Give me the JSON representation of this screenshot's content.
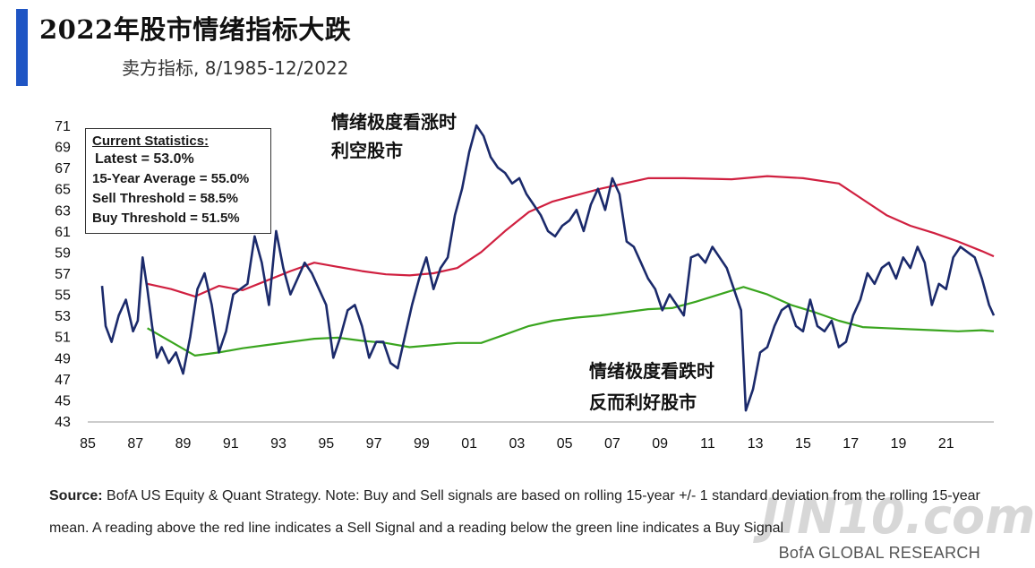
{
  "header": {
    "title": "2022年股市情绪指标大跌",
    "subtitle": "卖方指标, 8/1985-12/2022",
    "accent_color": "#1f55c4"
  },
  "stats": {
    "heading": "Current Statistics:",
    "latest": "Latest = 53.0%",
    "avg": "15-Year Average = 55.0%",
    "sell": "Sell Threshold = 58.5%",
    "buy": "Buy Threshold = 51.5%"
  },
  "annotations": {
    "top_line1": "情绪极度看涨时",
    "top_line2": "利空股市",
    "bottom_line1": "情绪极度看跌时",
    "bottom_line2": "反而利好股市"
  },
  "footnote": {
    "source_label": "Source:",
    "text": " BofA US Equity & Quant Strategy. Note: Buy and Sell signals are based on rolling 15-year +/- 1 standard deviation from the rolling 15-year mean. A reading above the red line indicates a Sell Signal and a reading below the green line indicates a Buy Signal"
  },
  "credit": "BofA GLOBAL RESEARCH",
  "watermark": "JIN10.com",
  "chart_data": {
    "type": "line",
    "title": "",
    "xlabel": "",
    "ylabel": "",
    "xlim": [
      1985,
      2023
    ],
    "ylim": [
      43,
      71
    ],
    "x_ticks": [
      "85",
      "87",
      "89",
      "91",
      "93",
      "95",
      "97",
      "99",
      "01",
      "03",
      "05",
      "07",
      "09",
      "11",
      "13",
      "15",
      "17",
      "19",
      "21"
    ],
    "y_ticks": [
      "43",
      "45",
      "47",
      "49",
      "51",
      "53",
      "55",
      "57",
      "59",
      "61",
      "63",
      "65",
      "67",
      "69",
      "71"
    ],
    "colors": {
      "indicator": "#1b2a6b",
      "sell": "#d02040",
      "buy": "#3aa51f"
    },
    "series": [
      {
        "key": "indicator",
        "x": [
          1985.6,
          1985.75,
          1986.0,
          1986.3,
          1986.6,
          1986.9,
          1987.1,
          1987.3,
          1987.5,
          1987.7,
          1987.9,
          1988.1,
          1988.4,
          1988.7,
          1989.0,
          1989.3,
          1989.6,
          1989.9,
          1990.2,
          1990.5,
          1990.8,
          1991.1,
          1991.4,
          1991.7,
          1992.0,
          1992.3,
          1992.6,
          1992.9,
          1993.2,
          1993.5,
          1993.8,
          1994.1,
          1994.4,
          1994.7,
          1995.0,
          1995.3,
          1995.6,
          1995.9,
          1996.2,
          1996.5,
          1996.8,
          1997.1,
          1997.4,
          1997.7,
          1998.0,
          1998.3,
          1998.6,
          1998.9,
          1999.2,
          1999.5,
          1999.8,
          2000.1,
          2000.4,
          2000.7,
          2001.0,
          2001.3,
          2001.6,
          2001.9,
          2002.2,
          2002.5,
          2002.8,
          2003.1,
          2003.4,
          2003.7,
          2004.0,
          2004.3,
          2004.6,
          2004.9,
          2005.2,
          2005.5,
          2005.8,
          2006.1,
          2006.4,
          2006.7,
          2007.0,
          2007.3,
          2007.6,
          2007.9,
          2008.2,
          2008.5,
          2008.8,
          2009.1,
          2009.4,
          2009.7,
          2010.0,
          2010.3,
          2010.6,
          2010.9,
          2011.2,
          2011.5,
          2011.8,
          2012.1,
          2012.4,
          2012.6,
          2012.9,
          2013.2,
          2013.5,
          2013.8,
          2014.1,
          2014.4,
          2014.7,
          2015.0,
          2015.3,
          2015.6,
          2015.9,
          2016.2,
          2016.5,
          2016.8,
          2017.1,
          2017.4,
          2017.7,
          2018.0,
          2018.3,
          2018.6,
          2018.9,
          2019.2,
          2019.5,
          2019.8,
          2020.1,
          2020.4,
          2020.7,
          2021.0,
          2021.3,
          2021.6,
          2021.9,
          2022.2,
          2022.5,
          2022.8,
          2023.0
        ],
        "y": [
          55.8,
          52.0,
          50.5,
          53.0,
          54.5,
          51.5,
          52.5,
          58.5,
          55.5,
          52.0,
          49.0,
          50.0,
          48.5,
          49.5,
          47.5,
          51.0,
          55.5,
          57.0,
          54.0,
          49.5,
          51.5,
          55.0,
          55.5,
          56.0,
          60.5,
          58.0,
          54.0,
          61.0,
          57.5,
          55.0,
          56.5,
          58.0,
          57.0,
          55.5,
          54.0,
          49.0,
          51.0,
          53.5,
          54.0,
          52.0,
          49.0,
          50.5,
          50.5,
          48.5,
          48.0,
          51.0,
          54.0,
          56.5,
          58.5,
          55.5,
          57.5,
          58.5,
          62.5,
          65.0,
          68.5,
          71.0,
          70.0,
          68.0,
          67.0,
          66.5,
          65.5,
          66.0,
          64.5,
          63.5,
          62.5,
          61.0,
          60.5,
          61.5,
          62.0,
          63.0,
          61.0,
          63.5,
          65.0,
          63.0,
          66.0,
          64.5,
          60.0,
          59.5,
          58.0,
          56.5,
          55.5,
          53.5,
          55.0,
          54.0,
          53.0,
          58.5,
          58.8,
          58.0,
          59.5,
          58.5,
          57.5,
          55.5,
          53.5,
          44.0,
          46.0,
          49.5,
          50.0,
          52.0,
          53.5,
          54.0,
          52.0,
          51.5,
          54.5,
          52.0,
          51.5,
          52.5,
          50.0,
          50.5,
          53.0,
          54.5,
          57.0,
          56.0,
          57.5,
          58.0,
          56.5,
          58.5,
          57.5,
          59.5,
          58.0,
          54.0,
          56.0,
          55.5,
          58.5,
          59.5,
          59.0,
          58.5,
          56.5,
          54.0,
          53.0
        ]
      },
      {
        "key": "sell",
        "x": [
          1987.5,
          1988.5,
          1989.5,
          1990.5,
          1991.5,
          1992.5,
          1993.5,
          1994.5,
          1995.5,
          1996.5,
          1997.5,
          1998.5,
          1999.5,
          2000.5,
          2001.5,
          2002.5,
          2003.5,
          2004.5,
          2005.5,
          2006.5,
          2007.5,
          2008.5,
          2010.0,
          2012.0,
          2013.5,
          2015.0,
          2016.5,
          2017.5,
          2018.5,
          2019.5,
          2020.5,
          2021.5,
          2022.5,
          2023.0
        ],
        "y": [
          56.0,
          55.5,
          54.8,
          55.8,
          55.4,
          56.3,
          57.2,
          58.0,
          57.6,
          57.2,
          56.9,
          56.8,
          57.0,
          57.5,
          59.0,
          61.0,
          62.8,
          63.8,
          64.4,
          65.0,
          65.5,
          66.0,
          66.0,
          65.9,
          66.2,
          66.0,
          65.5,
          64.0,
          62.5,
          61.5,
          60.8,
          60.0,
          59.1,
          58.6
        ]
      },
      {
        "key": "buy",
        "x": [
          1987.5,
          1988.5,
          1989.5,
          1990.5,
          1991.5,
          1992.5,
          1993.5,
          1994.5,
          1995.5,
          1996.5,
          1997.5,
          1998.5,
          1999.5,
          2000.5,
          2001.5,
          2002.5,
          2003.5,
          2004.5,
          2005.5,
          2006.5,
          2007.5,
          2008.5,
          2009.5,
          2010.5,
          2011.5,
          2012.5,
          2013.5,
          2014.5,
          2015.5,
          2016.5,
          2017.5,
          2018.5,
          2019.5,
          2020.5,
          2021.5,
          2022.5,
          2023.0
        ],
        "y": [
          51.8,
          50.5,
          49.2,
          49.5,
          49.9,
          50.2,
          50.5,
          50.8,
          50.9,
          50.6,
          50.4,
          50.0,
          50.2,
          50.4,
          50.4,
          51.2,
          52.0,
          52.5,
          52.8,
          53.0,
          53.3,
          53.6,
          53.7,
          54.3,
          55.0,
          55.7,
          55.0,
          54.0,
          53.3,
          52.5,
          51.9,
          51.8,
          51.7,
          51.6,
          51.5,
          51.6,
          51.5
        ]
      }
    ]
  }
}
